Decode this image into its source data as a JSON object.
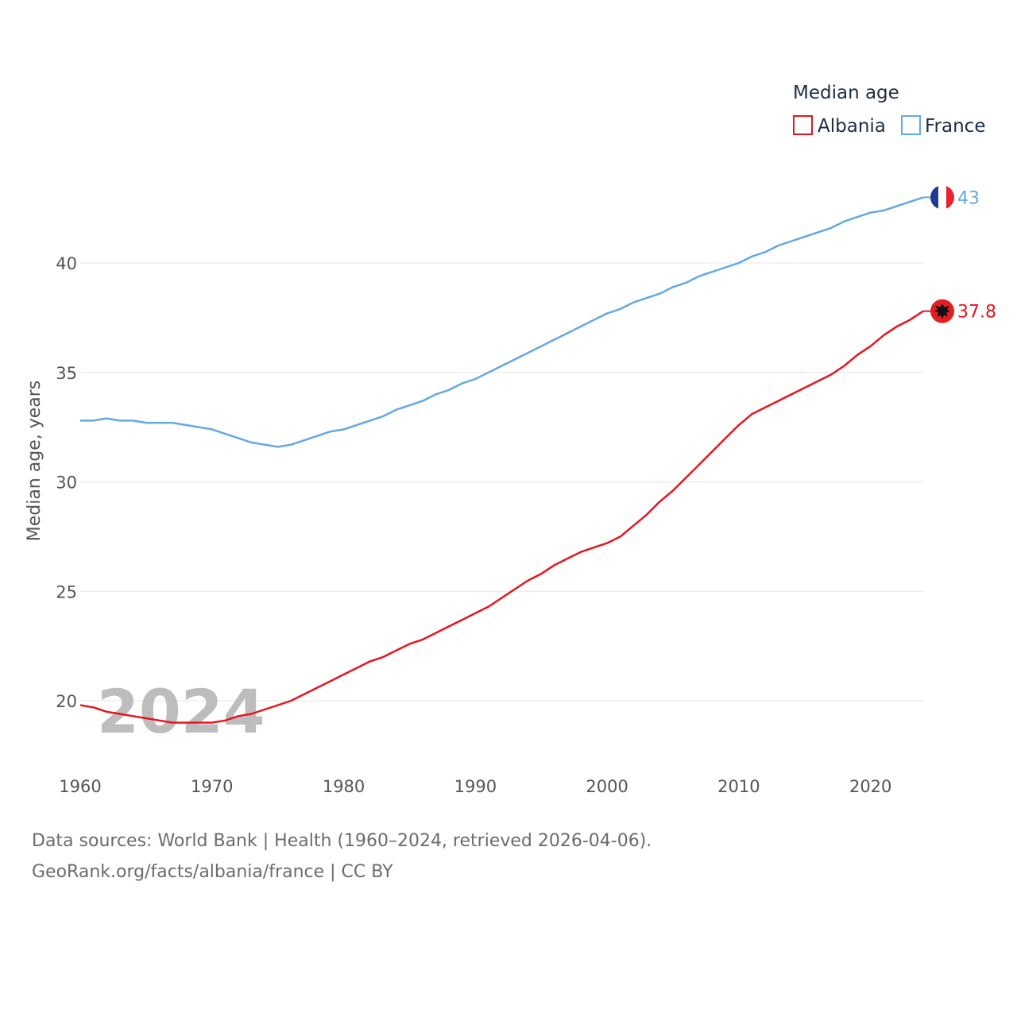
{
  "chart_data": {
    "type": "line",
    "legend_title": "Median age",
    "ylabel": "Median age, years",
    "xlabel": "",
    "xlim": [
      1960,
      2024
    ],
    "ylim": [
      18,
      45
    ],
    "xticks": [
      1960,
      1970,
      1980,
      1990,
      2000,
      2010,
      2020
    ],
    "yticks": [
      20,
      25,
      30,
      35,
      40
    ],
    "grid": true,
    "current_year": "2024",
    "x": [
      1960,
      1961,
      1962,
      1963,
      1964,
      1965,
      1966,
      1967,
      1968,
      1969,
      1970,
      1971,
      1972,
      1973,
      1974,
      1975,
      1976,
      1977,
      1978,
      1979,
      1980,
      1981,
      1982,
      1983,
      1984,
      1985,
      1986,
      1987,
      1988,
      1989,
      1990,
      1991,
      1992,
      1993,
      1994,
      1995,
      1996,
      1997,
      1998,
      1999,
      2000,
      2001,
      2002,
      2003,
      2004,
      2005,
      2006,
      2007,
      2008,
      2009,
      2010,
      2011,
      2012,
      2013,
      2014,
      2015,
      2016,
      2017,
      2018,
      2019,
      2020,
      2021,
      2022,
      2023,
      2024
    ],
    "series": [
      {
        "name": "Albania",
        "color": "#e8141e",
        "end_label": "37.8",
        "flag": "albania-flag",
        "values": [
          19.8,
          19.7,
          19.5,
          19.4,
          19.3,
          19.2,
          19.1,
          19.0,
          19.0,
          19.0,
          19.0,
          19.1,
          19.3,
          19.4,
          19.6,
          19.8,
          20.0,
          20.3,
          20.6,
          20.9,
          21.2,
          21.5,
          21.8,
          22.0,
          22.3,
          22.6,
          22.8,
          23.1,
          23.4,
          23.7,
          24.0,
          24.3,
          24.7,
          25.1,
          25.5,
          25.8,
          26.2,
          26.5,
          26.8,
          27.0,
          27.2,
          27.5,
          28.0,
          28.5,
          29.1,
          29.6,
          30.2,
          30.8,
          31.4,
          32.0,
          32.6,
          33.1,
          33.4,
          33.7,
          34.0,
          34.3,
          34.6,
          34.9,
          35.3,
          35.8,
          36.2,
          36.7,
          37.1,
          37.4,
          37.8
        ]
      },
      {
        "name": "France",
        "color": "#64a8e3",
        "end_label": "43",
        "flag": "france-flag",
        "values": [
          32.8,
          32.8,
          32.9,
          32.8,
          32.8,
          32.7,
          32.7,
          32.7,
          32.6,
          32.5,
          32.4,
          32.2,
          32.0,
          31.8,
          31.7,
          31.6,
          31.7,
          31.9,
          32.1,
          32.3,
          32.4,
          32.6,
          32.8,
          33.0,
          33.3,
          33.5,
          33.7,
          34.0,
          34.2,
          34.5,
          34.7,
          35.0,
          35.3,
          35.6,
          35.9,
          36.2,
          36.5,
          36.8,
          37.1,
          37.4,
          37.7,
          37.9,
          38.2,
          38.4,
          38.6,
          38.9,
          39.1,
          39.4,
          39.6,
          39.8,
          40.0,
          40.3,
          40.5,
          40.8,
          41.0,
          41.2,
          41.4,
          41.6,
          41.9,
          42.1,
          42.3,
          42.4,
          42.6,
          42.8,
          43.0
        ]
      }
    ]
  },
  "footer": {
    "sources": "Data sources: World Bank | Health (1960–2024, retrieved 2026-04-06).",
    "link": "GeoRank.org/facts/albania/france | CC BY"
  }
}
